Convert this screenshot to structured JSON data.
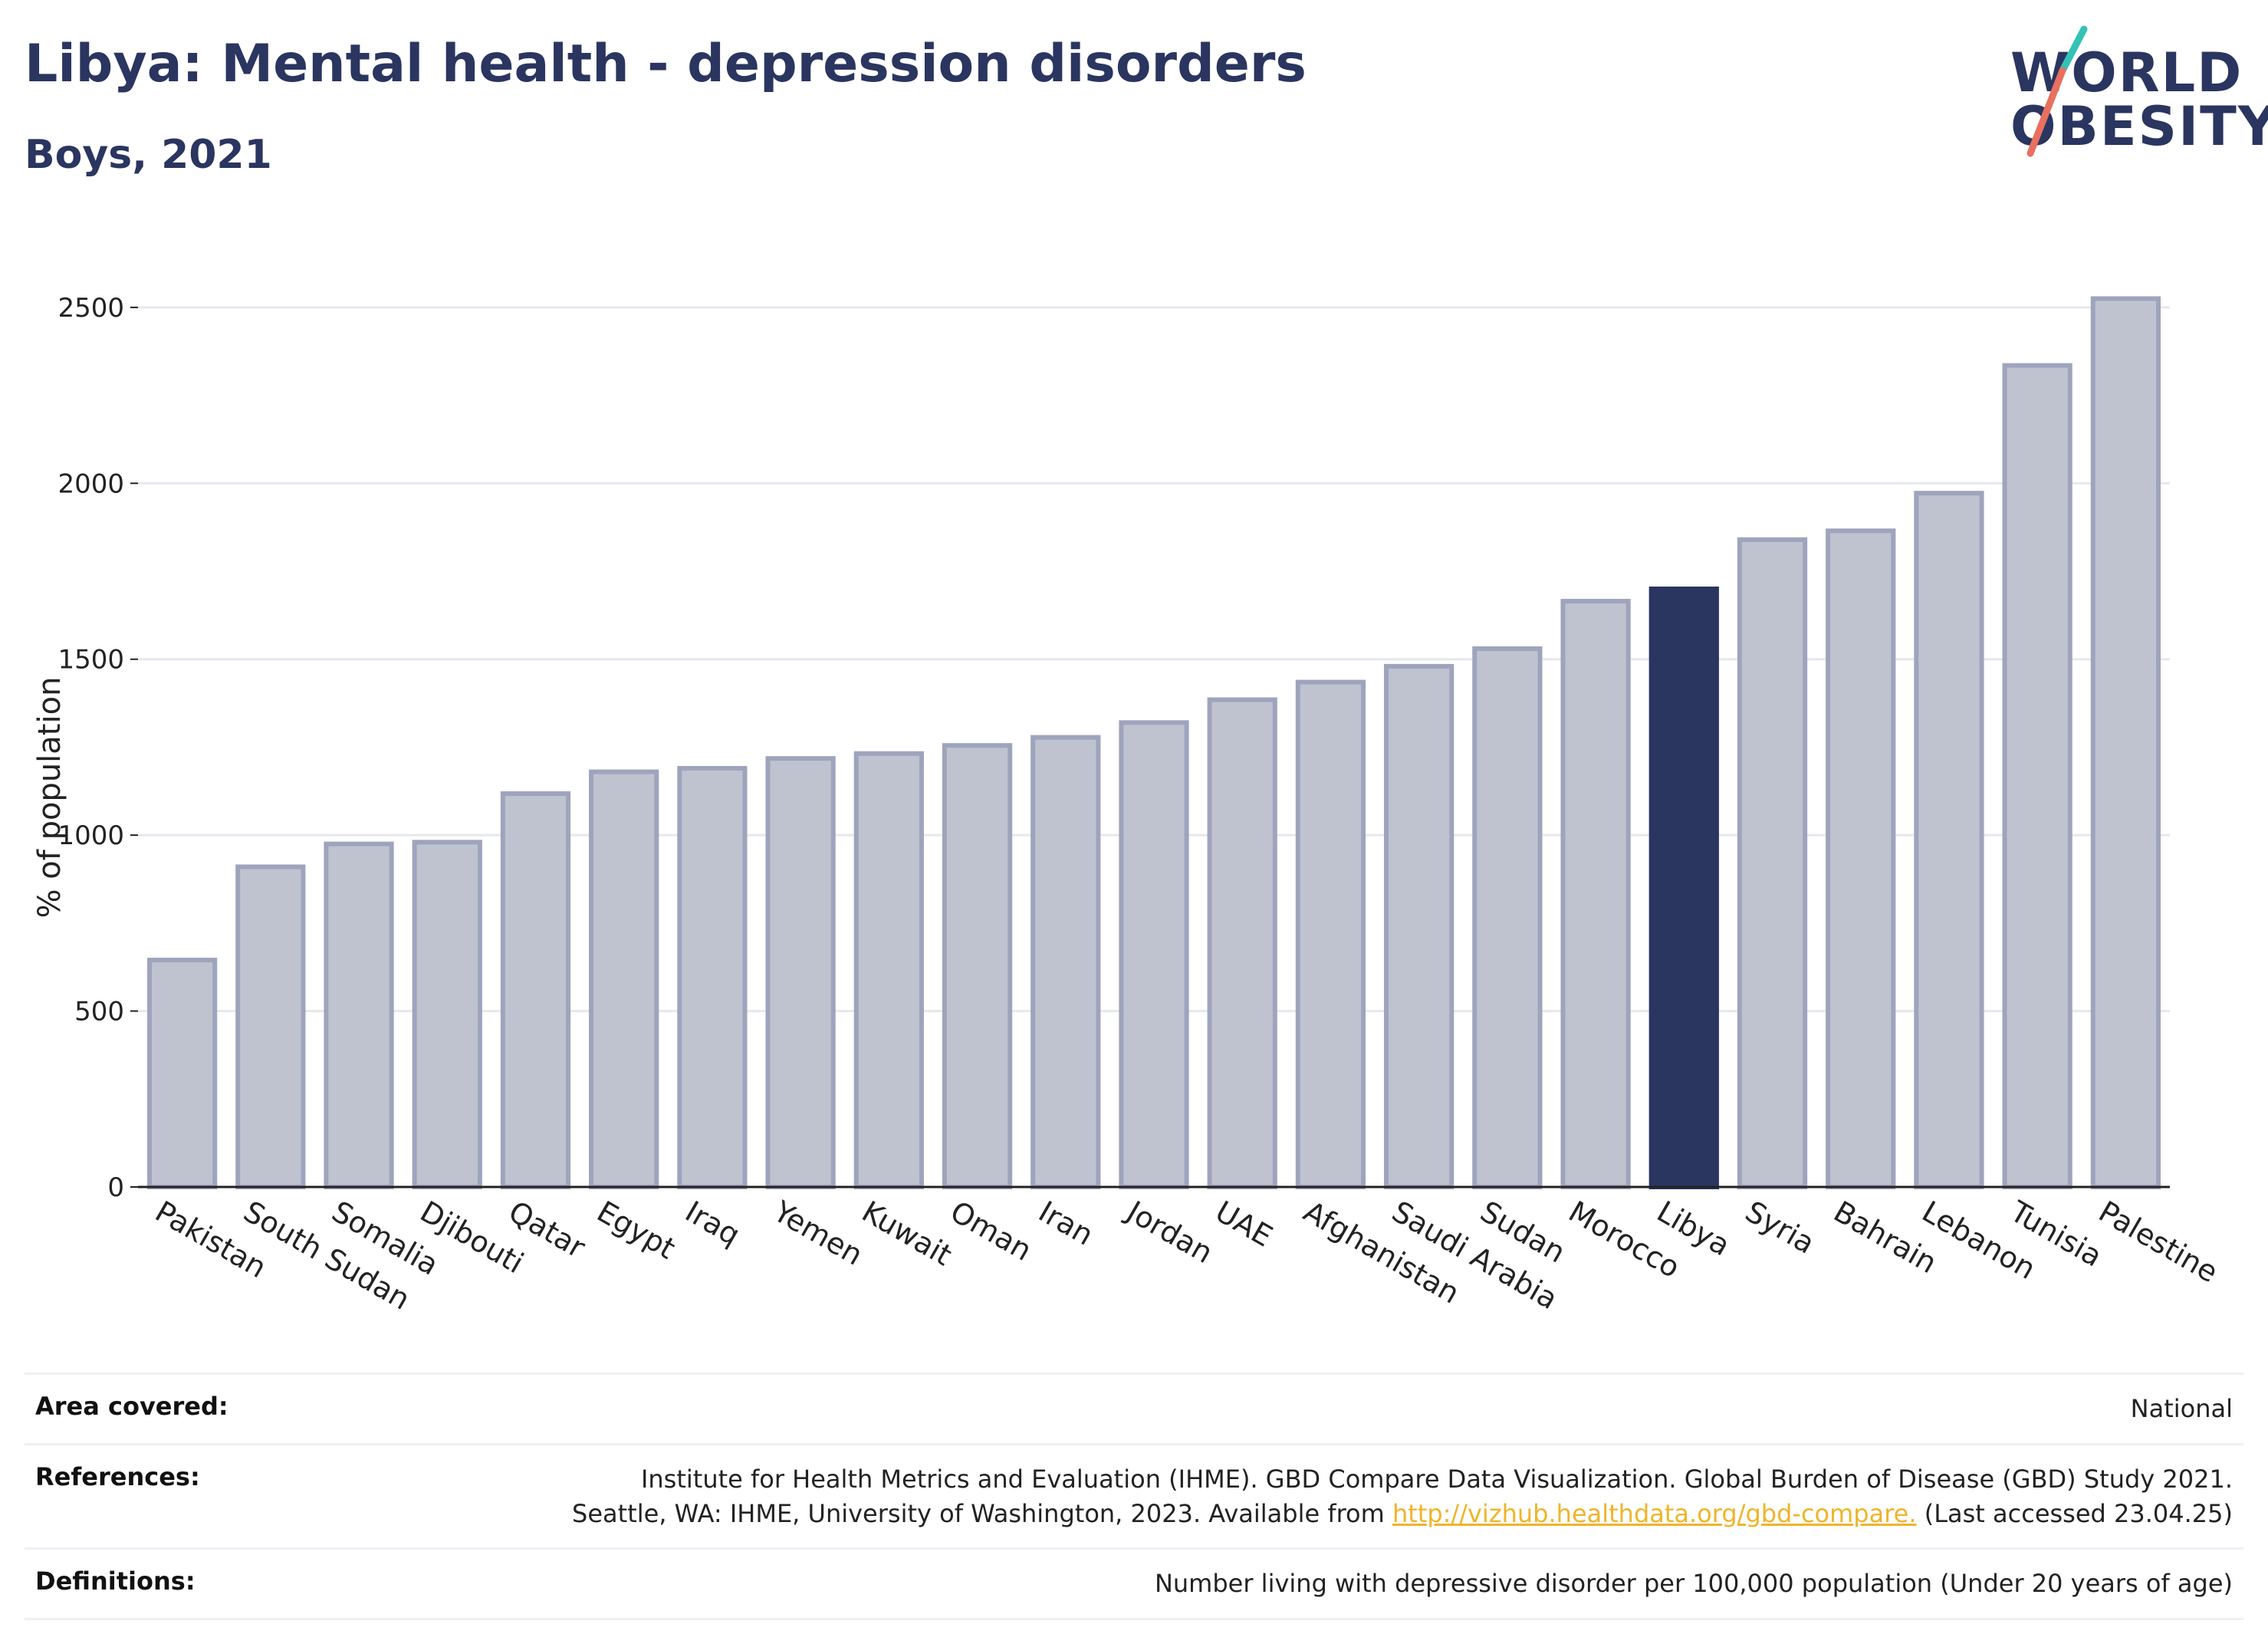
{
  "header": {
    "title": "Libya: Mental health - depression disorders",
    "subtitle": "Boys, 2021"
  },
  "logo": {
    "line1": "WORLD",
    "line2": "OBESITY",
    "text_color": "#2a3560",
    "slash_color_top": "#33c2b5",
    "slash_color_bottom": "#e8705f"
  },
  "chart_data": {
    "type": "bar",
    "ylabel": "% of population",
    "ylim": [
      0,
      2600
    ],
    "yticks": [
      0,
      500,
      1000,
      1500,
      2000,
      2500
    ],
    "grid": true,
    "categories": [
      "Pakistan",
      "South Sudan",
      "Somalia",
      "Djibouti",
      "Qatar",
      "Egypt",
      "Iraq",
      "Yemen",
      "Kuwait",
      "Oman",
      "Iran",
      "Jordan",
      "UAE",
      "Afghanistan",
      "Saudi Arabia",
      "Sudan",
      "Morocco",
      "Libya",
      "Syria",
      "Bahrain",
      "Lebanon",
      "Tunisia",
      "Palestine"
    ],
    "values": [
      645,
      910,
      975,
      980,
      1118,
      1180,
      1190,
      1218,
      1232,
      1255,
      1278,
      1320,
      1385,
      1435,
      1480,
      1530,
      1665,
      1700,
      1840,
      1865,
      1972,
      2335,
      2525
    ],
    "highlight": "Libya",
    "colors": {
      "bar_fill": "#bfc3d0",
      "bar_stroke": "#9fa4bd",
      "highlight_fill": "#2a3560",
      "grid": "#e6e8ee",
      "axis": "#222222"
    }
  },
  "footer": {
    "area_label": "Area covered:",
    "area_value": "National",
    "refs_label": "References:",
    "refs_line1": "Institute for Health Metrics and Evaluation (IHME). GBD Compare Data Visualization. Global Burden of Disease (GBD) Study 2021.",
    "refs_line2_pre": "Seattle, WA: IHME, University of Washington, 2023. Available from ",
    "refs_link": "http://vizhub.healthdata.org/gbd-compare.",
    "refs_line2_post": " (Last accessed 23.04.25)",
    "defs_label": "Definitions:",
    "defs_value": "Number living with depressive disorder per 100,000 population (Under 20 years of age)"
  }
}
